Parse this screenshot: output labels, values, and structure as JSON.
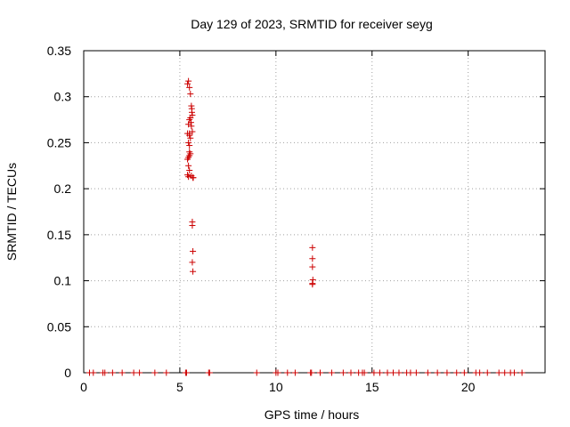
{
  "chart_data": {
    "type": "scatter",
    "title": "Day 129 of 2023, SRMTID for receiver seyg",
    "xlabel": "GPS time / hours",
    "ylabel": "SRMTID / TECUs",
    "xlim": [
      0,
      24
    ],
    "ylim": [
      0,
      0.35
    ],
    "x_ticks": [
      0,
      5,
      10,
      15,
      20
    ],
    "x_tick_labels": [
      "0",
      "5",
      "10",
      "15",
      "20"
    ],
    "y_ticks": [
      0,
      0.05,
      0.1,
      0.15,
      0.2,
      0.25,
      0.3,
      0.35
    ],
    "y_tick_labels": [
      "0",
      "0.05",
      "0.1",
      "0.15",
      "0.2",
      "0.25",
      "0.3",
      "0.35"
    ],
    "grid": true,
    "marker": "+",
    "colors": {
      "series": "#cc0000",
      "grid": "#a0a0a0",
      "frame": "#000000"
    },
    "series": [
      {
        "x": [
          5.4,
          5.45,
          5.5,
          5.55,
          5.6,
          5.62,
          5.63,
          5.65,
          5.55,
          5.5,
          5.58,
          5.6,
          5.45,
          5.65,
          5.5,
          5.5,
          5.4,
          5.45,
          5.55,
          5.5,
          5.5,
          5.55,
          5.5,
          5.45,
          5.4,
          5.45,
          5.5,
          5.4,
          5.45,
          5.6,
          5.68,
          5.7,
          5.65,
          5.65,
          5.68,
          5.65,
          5.68,
          11.9,
          11.9,
          11.9,
          11.92,
          11.9,
          11.9,
          0.3,
          0.5,
          1.0,
          1.1,
          1.5,
          2.0,
          2.6,
          2.9,
          3.7,
          4.3,
          5.3,
          5.35,
          6.5,
          6.55,
          9.0,
          10.0,
          10.1,
          10.6,
          11.0,
          11.8,
          11.85,
          12.3,
          12.9,
          13.5,
          13.9,
          14.3,
          14.5,
          14.6,
          15.1,
          15.4,
          15.8,
          16.1,
          16.4,
          16.8,
          17.0,
          17.3,
          17.9,
          18.4,
          18.9,
          19.4,
          19.8,
          20.4,
          20.6,
          21.0,
          21.6,
          21.9,
          22.2,
          22.4,
          22.8
        ],
        "y": [
          0.314,
          0.317,
          0.31,
          0.303,
          0.29,
          0.287,
          0.283,
          0.28,
          0.277,
          0.275,
          0.272,
          0.268,
          0.27,
          0.262,
          0.26,
          0.258,
          0.26,
          0.25,
          0.255,
          0.247,
          0.24,
          0.238,
          0.236,
          0.234,
          0.232,
          0.225,
          0.22,
          0.215,
          0.213,
          0.214,
          0.212,
          0.212,
          0.164,
          0.16,
          0.132,
          0.12,
          0.11,
          0.136,
          0.124,
          0.115,
          0.101,
          0.097,
          0.096,
          0,
          0,
          0,
          0,
          0,
          0,
          0,
          0,
          0,
          0,
          0,
          0,
          0,
          0,
          0,
          0,
          0,
          0,
          0,
          0,
          0,
          0,
          0,
          0,
          0,
          0,
          0,
          0,
          0,
          0,
          0,
          0,
          0,
          0,
          0,
          0,
          0,
          0,
          0,
          0,
          0,
          0,
          0,
          0,
          0,
          0,
          0,
          0,
          0
        ]
      }
    ]
  }
}
